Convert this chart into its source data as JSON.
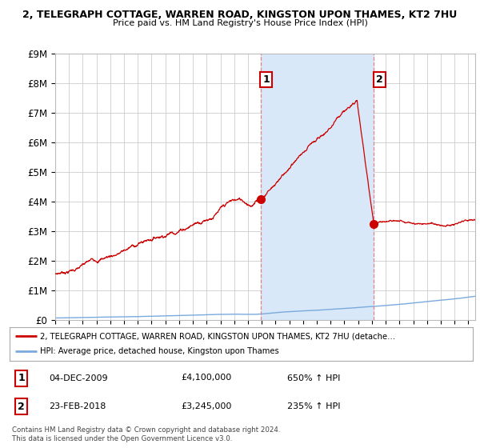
{
  "title": "2, TELEGRAPH COTTAGE, WARREN ROAD, KINGSTON UPON THAMES, KT2 7HU",
  "subtitle": "Price paid vs. HM Land Registry's House Price Index (HPI)",
  "ylim": [
    0,
    9000000
  ],
  "yticks": [
    0,
    1000000,
    2000000,
    3000000,
    4000000,
    5000000,
    6000000,
    7000000,
    8000000,
    9000000
  ],
  "ytick_labels": [
    "£0",
    "£1M",
    "£2M",
    "£3M",
    "£4M",
    "£5M",
    "£6M",
    "£7M",
    "£8M",
    "£9M"
  ],
  "sale1_date": 2009.92,
  "sale1_price": 4100000,
  "sale1_label": "1",
  "sale2_date": 2018.15,
  "sale2_price": 3245000,
  "sale2_label": "2",
  "hpi_line_color": "#7aaadd",
  "price_line_color": "#cc0000",
  "vline_color": "#dd8888",
  "shade_color": "#d8e8f8",
  "grid_color": "#cccccc",
  "background_color": "#ffffff",
  "plot_bg_color": "#ffffff",
  "legend_label1": "2, TELEGRAPH COTTAGE, WARREN ROAD, KINGSTON UPON THAMES, KT2 7HU (detache…",
  "legend_label2": "HPI: Average price, detached house, Kingston upon Thames",
  "footer": "Contains HM Land Registry data © Crown copyright and database right 2024.\nThis data is licensed under the Open Government Licence v3.0.",
  "xmin": 1995.0,
  "xmax": 2025.5
}
